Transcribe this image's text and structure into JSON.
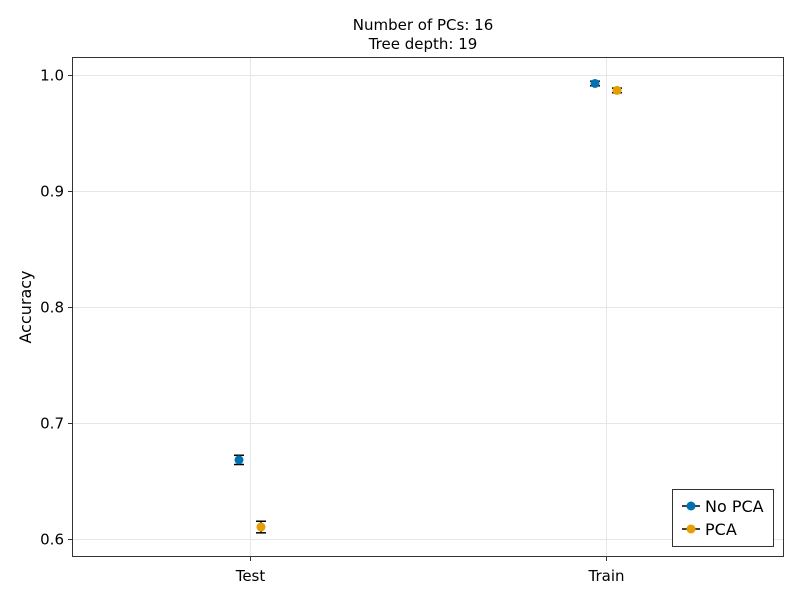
{
  "chart_data": {
    "type": "scatter",
    "title_lines": [
      "Number of PCs: 16",
      "Tree depth: 19"
    ],
    "xlabel": "",
    "ylabel": "Accuracy",
    "categories": [
      "Test",
      "Train"
    ],
    "ylim": [
      0.585,
      1.015
    ],
    "yticks": [
      0.6,
      0.7,
      0.8,
      0.9,
      1.0
    ],
    "ytick_labels": [
      "0.6",
      "0.7",
      "0.8",
      "0.9",
      "1.0"
    ],
    "grid": true,
    "legend_position": "bottom-right",
    "series": [
      {
        "name": "No PCA",
        "color": "#0072b2",
        "values": [
          0.668,
          0.993
        ],
        "errors": [
          0.004,
          0.002
        ]
      },
      {
        "name": "PCA",
        "color": "#e69f00",
        "values": [
          0.61,
          0.987
        ],
        "errors": [
          0.005,
          0.002
        ]
      }
    ]
  }
}
